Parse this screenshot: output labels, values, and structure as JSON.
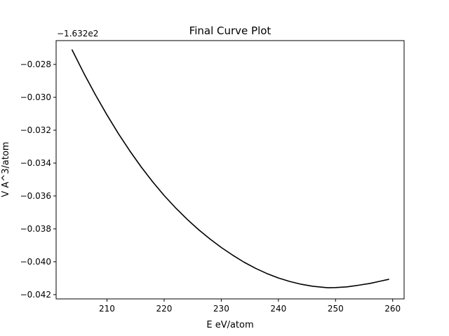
{
  "chart_data": {
    "type": "line",
    "title": "Final Curve Plot",
    "xlabel": "E  eV/atom",
    "ylabel": "V  A^3/atom",
    "y_offset_label": "−1.632e2",
    "xlim": [
      201.1,
      262.0
    ],
    "ylim": [
      -0.04226,
      -0.02655
    ],
    "x_ticks": [
      210,
      220,
      230,
      240,
      250,
      260
    ],
    "x_tick_labels": [
      "210",
      "220",
      "230",
      "240",
      "250",
      "260"
    ],
    "y_ticks": [
      -0.028,
      -0.03,
      -0.032,
      -0.034,
      -0.036,
      -0.038,
      -0.04,
      -0.042
    ],
    "y_tick_labels": [
      "−0.028",
      "−0.030",
      "−0.032",
      "−0.034",
      "−0.036",
      "−0.038",
      "−0.040",
      "−0.042"
    ],
    "grid": false,
    "series": [
      {
        "color": "#000000",
        "x": [
          203.9,
          206.0,
          208.0,
          210.0,
          212.0,
          214.0,
          216.0,
          218.0,
          220.0,
          222.0,
          224.0,
          226.0,
          228.0,
          230.0,
          232.0,
          234.0,
          236.0,
          238.0,
          240.0,
          242.0,
          244.0,
          246.0,
          248.0,
          248.7,
          250.0,
          252.0,
          254.0,
          256.0,
          258.0,
          259.3
        ],
        "y": [
          -0.02712,
          -0.02857,
          -0.02986,
          -0.03107,
          -0.03221,
          -0.03326,
          -0.03424,
          -0.03514,
          -0.03597,
          -0.03672,
          -0.03741,
          -0.03804,
          -0.03861,
          -0.03913,
          -0.0396,
          -0.04003,
          -0.0404,
          -0.04072,
          -0.04099,
          -0.0412,
          -0.04137,
          -0.04149,
          -0.04156,
          -0.04158,
          -0.04157,
          -0.04153,
          -0.04143,
          -0.04132,
          -0.04117,
          -0.04107
        ]
      }
    ]
  }
}
